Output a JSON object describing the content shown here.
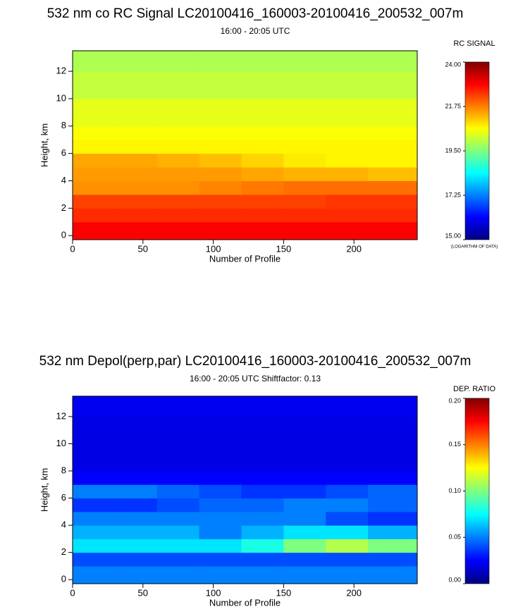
{
  "chart_data": [
    {
      "type": "heatmap",
      "title": "532 nm co RC Signal LC20100416_160003-20100416_200532_007m",
      "subtitle": "16:00 - 20:05 UTC",
      "xlabel": "Number of Profile",
      "ylabel": "Height, km",
      "xlim": [
        0,
        245
      ],
      "ylim": [
        -0.3,
        13.5
      ],
      "xticks": [
        0,
        50,
        100,
        150,
        200
      ],
      "yticks": [
        0,
        2,
        4,
        6,
        8,
        10,
        12
      ],
      "x_edges": [
        0,
        30,
        60,
        90,
        120,
        150,
        180,
        210,
        245
      ],
      "y_edges": [
        -0.3,
        1,
        2,
        3,
        4,
        5,
        6,
        7,
        8,
        10,
        12,
        13.5
      ],
      "z": [
        [
          22.9,
          22.9,
          22.9,
          22.9,
          22.9,
          22.9,
          22.9,
          22.9
        ],
        [
          22.5,
          22.5,
          22.5,
          22.5,
          22.5,
          22.5,
          22.5,
          22.5
        ],
        [
          22.3,
          22.3,
          22.3,
          22.3,
          22.3,
          22.3,
          22.4,
          22.4
        ],
        [
          21.6,
          21.6,
          21.6,
          21.7,
          21.8,
          21.9,
          21.9,
          21.9
        ],
        [
          21.5,
          21.5,
          21.5,
          21.5,
          21.4,
          21.3,
          21.3,
          21.2
        ],
        [
          21.4,
          21.4,
          21.3,
          21.2,
          21.0,
          20.8,
          20.7,
          20.7
        ],
        [
          20.7,
          20.7,
          20.7,
          20.7,
          20.7,
          20.7,
          20.7,
          20.7
        ],
        [
          20.6,
          20.6,
          20.6,
          20.6,
          20.6,
          20.6,
          20.6,
          20.6
        ],
        [
          20.4,
          20.4,
          20.4,
          20.4,
          20.4,
          20.4,
          20.4,
          20.4
        ],
        [
          20.1,
          20.1,
          20.1,
          20.1,
          20.1,
          20.1,
          20.1,
          20.1
        ],
        [
          19.9,
          19.9,
          19.9,
          19.9,
          19.9,
          19.9,
          19.9,
          19.9
        ]
      ],
      "colorbar_title": "RC SIGNAL",
      "colorbar_note": "(LOGARITHM OF DATA)",
      "zlim": [
        15,
        24
      ],
      "zticks": [
        {
          "value": 15,
          "label": "15.00"
        },
        {
          "value": 17.25,
          "label": "17.25"
        },
        {
          "value": 19.5,
          "label": "19.50"
        },
        {
          "value": 21.75,
          "label": "21.75"
        },
        {
          "value": 24,
          "label": "24.00"
        }
      ],
      "colorscale": [
        "#00007f",
        "#0000ff",
        "#007fff",
        "#00ffff",
        "#7fff7f",
        "#ffff00",
        "#ff7f00",
        "#ff0000",
        "#7f0000"
      ]
    },
    {
      "type": "heatmap",
      "title": "532 nm Depol(perp,par) LC20100416_160003-20100416_200532_007m",
      "subtitle": "16:00 - 20:05 UTC Shiftfactor: 0.13",
      "xlabel": "Number of Profile",
      "ylabel": "Height, km",
      "xlim": [
        0,
        245
      ],
      "ylim": [
        -0.3,
        13.5
      ],
      "xticks": [
        0,
        50,
        100,
        150,
        200
      ],
      "yticks": [
        0,
        2,
        4,
        6,
        8,
        10,
        12
      ],
      "x_edges": [
        0,
        30,
        60,
        90,
        120,
        150,
        180,
        210,
        245
      ],
      "y_edges": [
        -0.3,
        1,
        2,
        3,
        4,
        5,
        6,
        7,
        8,
        10,
        12,
        13.5
      ],
      "z": [
        [
          0.05,
          0.05,
          0.05,
          0.05,
          0.05,
          0.05,
          0.05,
          0.05
        ],
        [
          0.04,
          0.04,
          0.04,
          0.04,
          0.04,
          0.04,
          0.04,
          0.04
        ],
        [
          0.07,
          0.07,
          0.07,
          0.07,
          0.08,
          0.1,
          0.11,
          0.1
        ],
        [
          0.06,
          0.06,
          0.06,
          0.05,
          0.06,
          0.07,
          0.07,
          0.06
        ],
        [
          0.05,
          0.05,
          0.05,
          0.05,
          0.05,
          0.05,
          0.04,
          0.035
        ],
        [
          0.035,
          0.035,
          0.04,
          0.045,
          0.045,
          0.05,
          0.05,
          0.045
        ],
        [
          0.05,
          0.05,
          0.045,
          0.04,
          0.035,
          0.035,
          0.04,
          0.045
        ],
        [
          0.025,
          0.025,
          0.025,
          0.025,
          0.025,
          0.025,
          0.025,
          0.025
        ],
        [
          0.02,
          0.02,
          0.02,
          0.02,
          0.02,
          0.02,
          0.02,
          0.02
        ],
        [
          0.02,
          0.02,
          0.02,
          0.02,
          0.02,
          0.02,
          0.02,
          0.02
        ],
        [
          0.022,
          0.022,
          0.022,
          0.022,
          0.022,
          0.022,
          0.022,
          0.022
        ]
      ],
      "colorbar_title": "DEP. RATIO",
      "zlim": [
        0,
        0.2
      ],
      "zticks": [
        {
          "value": 0,
          "label": "0.00"
        },
        {
          "value": 0.05,
          "label": "0.05"
        },
        {
          "value": 0.1,
          "label": "0.10"
        },
        {
          "value": 0.15,
          "label": "0.15"
        },
        {
          "value": 0.2,
          "label": "0.20"
        }
      ],
      "colorscale": [
        "#00007f",
        "#0000ff",
        "#007fff",
        "#00ffff",
        "#7fff7f",
        "#ffff00",
        "#ff7f00",
        "#ff0000",
        "#7f0000"
      ]
    }
  ]
}
